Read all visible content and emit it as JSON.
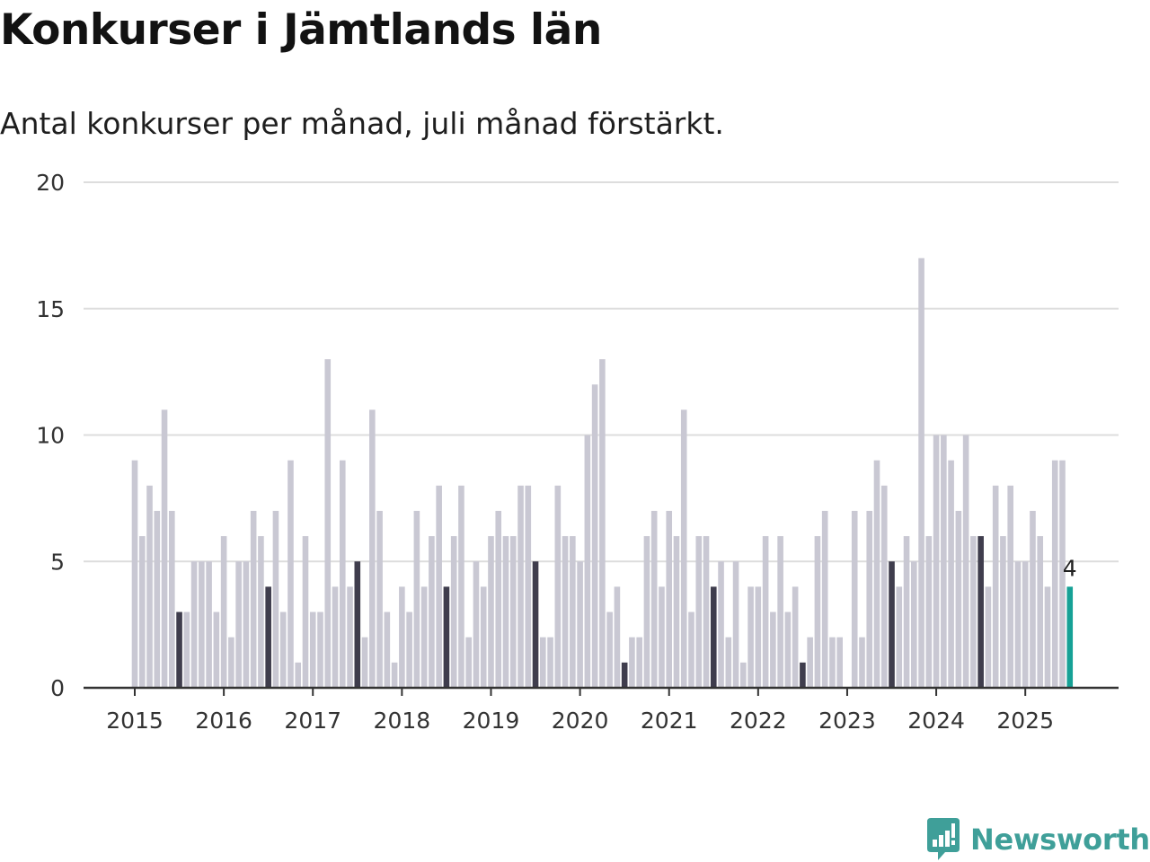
{
  "title": "Konkurser i Jämtlands län",
  "subtitle": "Antal konkurser per månad, juli månad förstärkt.",
  "brand": {
    "name": "Newsworthy",
    "color": "#3f9f99",
    "icon": "chart-bubble-icon"
  },
  "colors": {
    "bar": "#c9c8d3",
    "highlight": "#3f3d4d",
    "current": "#16a196",
    "grid": "#dddddd",
    "axis": "#333333"
  },
  "chart_data": {
    "type": "bar",
    "start": "2015-01",
    "frequency": "monthly",
    "ylim": [
      0,
      20
    ],
    "yticks": [
      0,
      5,
      10,
      15,
      20
    ],
    "xticks": [
      "2015",
      "2016",
      "2017",
      "2018",
      "2019",
      "2020",
      "2021",
      "2022",
      "2023",
      "2024",
      "2025"
    ],
    "highlight_month": "juli",
    "grid": true,
    "values": [
      9,
      6,
      8,
      7,
      11,
      7,
      3,
      3,
      5,
      5,
      5,
      3,
      6,
      2,
      5,
      5,
      7,
      6,
      4,
      7,
      3,
      9,
      1,
      6,
      3,
      3,
      13,
      4,
      9,
      4,
      5,
      2,
      11,
      7,
      3,
      1,
      4,
      3,
      7,
      4,
      6,
      8,
      4,
      6,
      8,
      2,
      5,
      4,
      6,
      7,
      6,
      6,
      8,
      8,
      5,
      2,
      2,
      8,
      6,
      6,
      5,
      10,
      12,
      13,
      3,
      4,
      1,
      2,
      2,
      6,
      7,
      4,
      7,
      6,
      11,
      3,
      6,
      6,
      4,
      5,
      2,
      5,
      1,
      4,
      4,
      6,
      3,
      6,
      3,
      4,
      1,
      2,
      6,
      7,
      2,
      2,
      0,
      7,
      2,
      7,
      9,
      8,
      5,
      4,
      6,
      5,
      17,
      6,
      10,
      10,
      9,
      7,
      10,
      6,
      6,
      4,
      8,
      6,
      8,
      5,
      5,
      7,
      6,
      4,
      9,
      9,
      4
    ],
    "last_value_label": "4"
  }
}
